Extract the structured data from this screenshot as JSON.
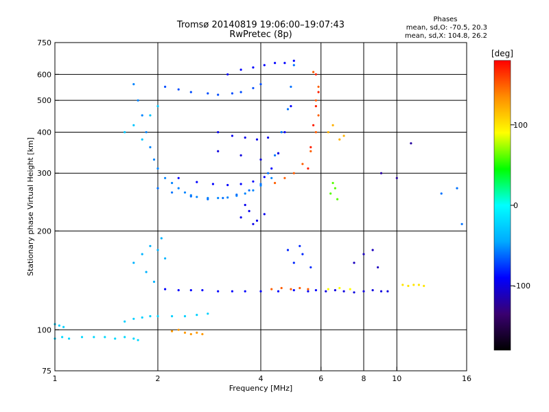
{
  "chart_data": {
    "type": "scatter",
    "title": "Tromsø 20140819 19:06:00–19:07:43",
    "subtitle": "RwPretec (8p)",
    "xlabel": "Frequency [MHz]",
    "ylabel": "Stationary phase Virtual Height [km]",
    "x_scale": "log",
    "y_scale": "log",
    "xlim": [
      1,
      16
    ],
    "ylim": [
      75,
      750
    ],
    "x_ticks": [
      1,
      2,
      4,
      6,
      8,
      10,
      16
    ],
    "y_ticks": [
      75,
      100,
      200,
      300,
      400,
      500,
      600,
      750
    ],
    "grid_x": [
      2,
      4,
      6,
      8,
      10
    ],
    "grid_y": [
      100,
      200,
      300,
      400,
      500,
      600
    ],
    "phase_box": {
      "heading": "Phases",
      "line_o": "mean, sd,O: -70.5, 20.3",
      "line_x": "mean, sd,X: 104.8, 26.2"
    },
    "colorbar": {
      "unit_label": "[deg]",
      "range": [
        -180,
        180
      ],
      "ticks": [
        100,
        0,
        -100
      ],
      "colormap": [
        "#000000",
        "#3a0070",
        "#0000ff",
        "#00aaff",
        "#00ffff",
        "#00ff00",
        "#ffff00",
        "#ff8c00",
        "#ff0000"
      ]
    },
    "point_color": "#1e90ff",
    "series": [
      {
        "x": [
          1.0,
          1.05,
          1.1,
          1.2,
          1.3,
          1.4,
          1.5,
          1.6,
          1.7,
          1.75
        ],
        "y": [
          94,
          95,
          94,
          95,
          95,
          95,
          94,
          95,
          94,
          93
        ],
        "phase": -20
      },
      {
        "x": [
          1.0,
          1.03,
          1.06
        ],
        "y": [
          104,
          103,
          102
        ],
        "phase": -25
      },
      {
        "x": [
          1.6,
          1.7,
          1.8,
          1.9,
          2.0,
          2.2,
          2.4,
          2.6,
          2.8
        ],
        "y": [
          106,
          108,
          109,
          110,
          110,
          110,
          110,
          111,
          112
        ],
        "phase": -25
      },
      {
        "x": [
          2.2,
          2.3,
          2.4,
          2.5,
          2.6,
          2.7
        ],
        "y": [
          99,
          100,
          98,
          97,
          98,
          97
        ],
        "phase": 130
      },
      {
        "x": [
          1.7,
          1.75,
          1.8,
          1.85,
          1.9,
          1.95,
          2.0,
          2.1,
          2.2,
          2.3,
          2.4,
          2.5,
          2.6,
          2.8,
          3.0,
          3.2,
          3.4,
          3.6,
          3.8,
          4.0,
          4.3
        ],
        "y": [
          560,
          500,
          450,
          400,
          360,
          330,
          310,
          290,
          280,
          270,
          262,
          257,
          254,
          252,
          252,
          253,
          256,
          260,
          266,
          275,
          290
        ],
        "phase": -55
      },
      {
        "x": [
          2.0,
          2.2,
          2.5,
          2.8,
          3.1,
          3.4,
          3.7,
          4.0,
          4.2,
          4.4,
          4.6,
          4.8,
          4.9,
          5.0
        ],
        "y": [
          270,
          262,
          255,
          250,
          252,
          258,
          266,
          278,
          300,
          340,
          400,
          470,
          550,
          640
        ],
        "phase": -60
      },
      {
        "x": [
          2.3,
          2.6,
          2.9,
          3.2,
          3.5,
          3.8,
          4.1,
          4.3,
          4.5,
          4.7,
          4.9
        ],
        "y": [
          290,
          282,
          278,
          276,
          278,
          283,
          292,
          310,
          345,
          400,
          480
        ],
        "phase": -90
      },
      {
        "x": [
          2.1,
          2.3,
          2.5,
          2.8,
          3.0,
          3.3,
          3.5,
          3.8,
          4.0
        ],
        "y": [
          550,
          540,
          530,
          525,
          520,
          525,
          530,
          545,
          560
        ],
        "phase": -70
      },
      {
        "x": [
          3.2,
          3.5,
          3.8,
          4.1,
          4.4,
          4.7,
          5.0
        ],
        "y": [
          600,
          620,
          630,
          640,
          650,
          650,
          660
        ],
        "phase": -90
      },
      {
        "x": [
          3.0,
          3.3,
          3.6,
          3.9,
          4.2
        ],
        "y": [
          400,
          390,
          385,
          380,
          385
        ],
        "phase": -95
      },
      {
        "x": [
          2.1,
          2.3,
          2.5,
          2.7,
          3.0,
          3.3,
          3.6,
          4.0,
          4.5,
          5.0,
          5.5,
          5.8
        ],
        "y": [
          133,
          132,
          132,
          132,
          131,
          131,
          131,
          131,
          131,
          132,
          131,
          132
        ],
        "phase": -90
      },
      {
        "x": [
          4.3,
          4.6,
          4.9,
          5.2,
          5.5
        ],
        "y": [
          133,
          134,
          133,
          134,
          133
        ],
        "phase": 150
      },
      {
        "x": [
          6.2,
          6.6,
          7.0,
          7.5,
          8.0,
          8.5,
          9.0,
          9.4
        ],
        "y": [
          131,
          132,
          131,
          130,
          131,
          132,
          131,
          131
        ],
        "phase": -100
      },
      {
        "x": [
          6.3,
          6.8,
          7.3
        ],
        "y": [
          133,
          134,
          133
        ],
        "phase": 90
      },
      {
        "x": [
          10.4,
          10.8,
          11.2,
          11.6,
          12.0
        ],
        "y": [
          137,
          136,
          137,
          137,
          136
        ],
        "phase": 100
      },
      {
        "x": [
          4.4,
          4.7,
          5.0,
          5.3,
          5.6,
          5.8,
          5.9,
          5.8,
          5.9,
          5.7
        ],
        "y": [
          280,
          290,
          300,
          320,
          350,
          400,
          450,
          500,
          550,
          610
        ],
        "phase": 150
      },
      {
        "x": [
          5.5,
          5.6,
          5.7,
          5.8,
          5.9,
          5.8
        ],
        "y": [
          310,
          360,
          420,
          480,
          530,
          600
        ],
        "phase": 170
      },
      {
        "x": [
          6.4,
          6.5,
          6.6,
          6.7
        ],
        "y": [
          260,
          280,
          270,
          250
        ],
        "phase": 60
      },
      {
        "x": [
          6.3,
          6.5,
          6.8,
          7.0
        ],
        "y": [
          400,
          420,
          380,
          390
        ],
        "phase": 120
      },
      {
        "x": [
          1.7,
          1.8,
          1.9,
          2.0,
          2.1,
          1.85,
          1.95,
          2.05
        ],
        "y": [
          160,
          170,
          180,
          175,
          165,
          150,
          140,
          190
        ],
        "phase": -40
      },
      {
        "x": [
          1.6,
          1.7,
          1.8,
          1.9,
          2.0
        ],
        "y": [
          400,
          420,
          380,
          450,
          480
        ],
        "phase": -30
      },
      {
        "x": [
          3.5,
          3.7,
          3.9,
          4.1,
          3.6,
          3.8
        ],
        "y": [
          220,
          230,
          215,
          225,
          240,
          210
        ],
        "phase": -95
      },
      {
        "x": [
          5.0,
          5.3,
          5.6,
          4.8,
          5.2
        ],
        "y": [
          160,
          170,
          155,
          175,
          180
        ],
        "phase": -80
      },
      {
        "x": [
          7.5,
          8.0,
          8.5,
          8.8
        ],
        "y": [
          160,
          170,
          175,
          155
        ],
        "phase": -110
      },
      {
        "x": [
          3.0,
          3.5,
          4.0,
          4.5
        ],
        "y": [
          350,
          340,
          330,
          345
        ],
        "phase": -100
      },
      {
        "x": [
          13.5,
          15.0,
          15.5
        ],
        "y": [
          260,
          270,
          210
        ],
        "phase": -60
      },
      {
        "x": [
          9.0,
          10.0,
          11.0
        ],
        "y": [
          300,
          290,
          370
        ],
        "phase": -120
      }
    ]
  }
}
